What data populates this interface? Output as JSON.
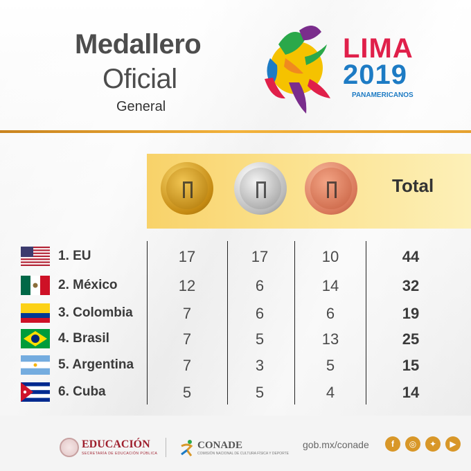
{
  "header": {
    "title_line1": "Medallero",
    "title_line2": "Oficial",
    "subtitle": "General"
  },
  "logo": {
    "name": "LIMA",
    "year": "2019",
    "sub": "PANAMERICANOS",
    "colors": [
      "#e0204a",
      "#1d7bc4",
      "#f5c200",
      "#2aa84a",
      "#7a2d8c",
      "#f08a1f"
    ]
  },
  "table": {
    "medal_icons": [
      "gold-medal-icon",
      "silver-medal-icon",
      "bronze-medal-icon"
    ],
    "total_header": "Total",
    "rows": [
      {
        "country": "1. EU",
        "flag": "usa-flag-icon",
        "gold": "17",
        "silver": "17",
        "bronze": "10",
        "total": "44"
      },
      {
        "country": "2. México",
        "flag": "mexico-flag-icon",
        "gold": "12",
        "silver": "6",
        "bronze": "14",
        "total": "32"
      },
      {
        "country": "3. Colombia",
        "flag": "colombia-flag-icon",
        "gold": "7",
        "silver": "6",
        "bronze": "6",
        "total": "19"
      },
      {
        "country": "4. Brasil",
        "flag": "brazil-flag-icon",
        "gold": "7",
        "silver": "5",
        "bronze": "13",
        "total": "25"
      },
      {
        "country": "5. Argentina",
        "flag": "argentina-flag-icon",
        "gold": "7",
        "silver": "3",
        "bronze": "5",
        "total": "15"
      },
      {
        "country": "6. Cuba",
        "flag": "cuba-flag-icon",
        "gold": "5",
        "silver": "5",
        "bronze": "4",
        "total": "14"
      }
    ]
  },
  "footer": {
    "edu": "EDUCACIÓN",
    "edu_sub": "SECRETARÍA DE EDUCACIÓN PÚBLICA",
    "conade": "CONADE",
    "conade_sub": "COMISIÓN NACIONAL DE CULTURA FÍSICA Y DEPORTE",
    "web": "gob.mx/conade",
    "social": [
      "facebook-icon",
      "instagram-icon",
      "twitter-icon",
      "youtube-icon"
    ],
    "accent": "#d89728"
  }
}
